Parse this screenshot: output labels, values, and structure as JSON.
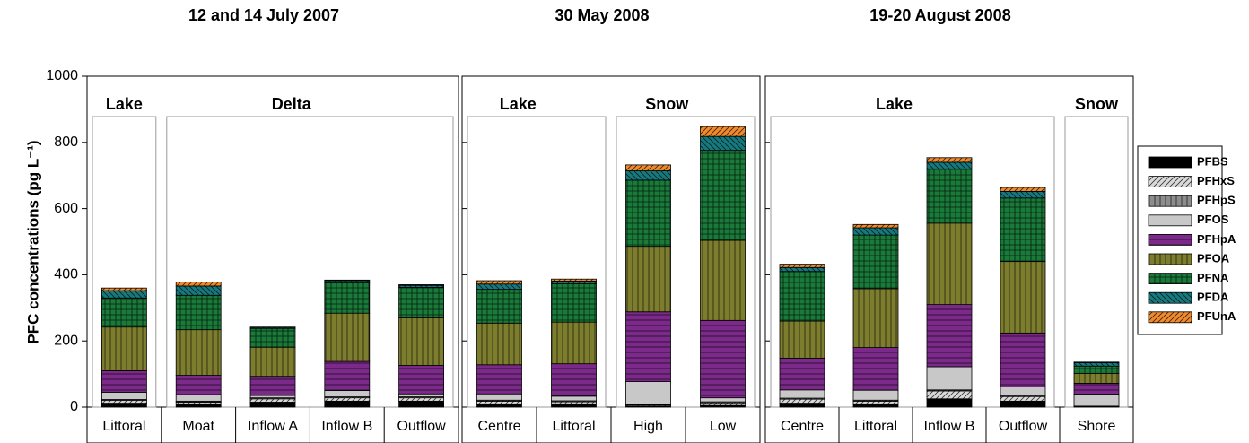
{
  "chart_data": [
    {
      "type": "bar",
      "stacked": true,
      "title": "12 and 14 July 2007",
      "y_label": "PFC concentrations (pg L⁻¹)",
      "ylim": [
        0,
        1000
      ],
      "yticks": [
        0,
        200,
        400,
        600,
        800,
        1000
      ],
      "groups": [
        {
          "label": "Lake",
          "categories": [
            "Littoral"
          ]
        },
        {
          "label": "Delta",
          "categories": [
            "Moat",
            "Inflow A",
            "Inflow B",
            "Outflow"
          ]
        }
      ],
      "series": [
        {
          "name": "PFBS",
          "color": "#000000",
          "pattern": "solid",
          "values": [
            12,
            10,
            15,
            18,
            18
          ]
        },
        {
          "name": "PFHxS",
          "color": "#d9d9d9",
          "pattern": "diag",
          "values": [
            8,
            5,
            10,
            10,
            10
          ]
        },
        {
          "name": "PFHpS",
          "color": "#8c8c8c",
          "pattern": "vert",
          "values": [
            3,
            3,
            3,
            3,
            3
          ]
        },
        {
          "name": "PFOS",
          "color": "#c8c8c8",
          "pattern": "solid",
          "values": [
            22,
            20,
            7,
            19,
            9
          ]
        },
        {
          "name": "PFHpA",
          "color": "#7b2a8a",
          "pattern": "horiz",
          "values": [
            65,
            58,
            58,
            88,
            86
          ]
        },
        {
          "name": "PFOA",
          "color": "#7d7d2e",
          "pattern": "vert",
          "values": [
            132,
            138,
            88,
            146,
            144
          ]
        },
        {
          "name": "PFNA",
          "color": "#1a7a3a",
          "pattern": "grid",
          "values": [
            88,
            104,
            57,
            92,
            92
          ]
        },
        {
          "name": "PFDA",
          "color": "#157a80",
          "pattern": "backdiag",
          "values": [
            22,
            28,
            3,
            6,
            6
          ]
        },
        {
          "name": "PFUnA",
          "color": "#f08a2a",
          "pattern": "diag",
          "values": [
            8,
            12,
            1,
            2,
            2
          ]
        }
      ]
    },
    {
      "type": "bar",
      "stacked": true,
      "title": "30 May 2008",
      "ylim": [
        0,
        1000
      ],
      "yticks": [
        0,
        200,
        400,
        600,
        800,
        1000
      ],
      "groups": [
        {
          "label": "Lake",
          "categories": [
            "Centre",
            "Littoral"
          ]
        },
        {
          "label": "Snow",
          "categories": [
            "High",
            "Low"
          ]
        }
      ],
      "series": [
        {
          "values": [
            10,
            10,
            2,
            5
          ]
        },
        {
          "values": [
            8,
            6,
            3,
            8
          ]
        },
        {
          "values": [
            3,
            3,
            2,
            3
          ]
        },
        {
          "values": [
            19,
            14,
            70,
            12
          ]
        },
        {
          "values": [
            88,
            98,
            211,
            234
          ]
        },
        {
          "values": [
            126,
            126,
            198,
            242
          ]
        },
        {
          "values": [
            102,
            116,
            200,
            272
          ]
        },
        {
          "values": [
            16,
            8,
            28,
            42
          ]
        },
        {
          "values": [
            10,
            6,
            18,
            30
          ]
        }
      ]
    },
    {
      "type": "bar",
      "stacked": true,
      "title": "19-20 August 2008",
      "ylim": [
        0,
        1000
      ],
      "yticks": [
        0,
        200,
        400,
        600,
        800,
        1000
      ],
      "groups": [
        {
          "label": "Lake",
          "categories": [
            "Centre",
            "Littoral",
            "Inflow B",
            "Outflow"
          ]
        },
        {
          "label": "Snow",
          "categories": [
            "Shore"
          ]
        }
      ],
      "series": [
        {
          "values": [
            12,
            10,
            25,
            18,
            1
          ]
        },
        {
          "values": [
            12,
            8,
            24,
            14,
            1
          ]
        },
        {
          "values": [
            3,
            3,
            3,
            3,
            1
          ]
        },
        {
          "values": [
            25,
            30,
            70,
            26,
            36
          ]
        },
        {
          "values": [
            96,
            129,
            188,
            163,
            33
          ]
        },
        {
          "values": [
            112,
            178,
            246,
            216,
            30
          ]
        },
        {
          "values": [
            150,
            162,
            164,
            192,
            22
          ]
        },
        {
          "values": [
            12,
            22,
            20,
            20,
            10
          ]
        },
        {
          "values": [
            10,
            10,
            14,
            12,
            2
          ]
        }
      ]
    }
  ]
}
